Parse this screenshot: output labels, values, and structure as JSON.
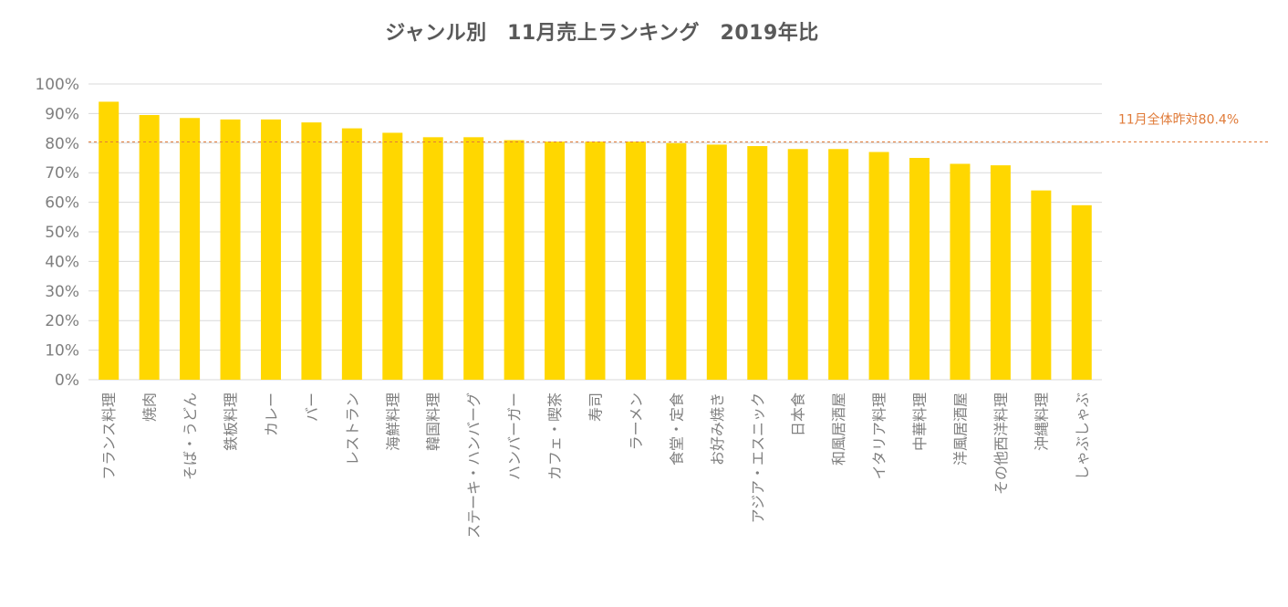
{
  "chart_data": {
    "type": "bar",
    "title": "ジャンル別　11月売上ランキング　2019年比",
    "categories": [
      "フランス料理",
      "焼肉",
      "そば・うどん",
      "鉄板料理",
      "カレー",
      "バー",
      "レストラン",
      "海鮮料理",
      "韓国料理",
      "ステーキ・ハンバーグ",
      "ハンバーガー",
      "カフェ・喫茶",
      "寿司",
      "ラーメン",
      "食堂・定食",
      "お好み焼き",
      "アジア・エスニック",
      "日本食",
      "和風居酒屋",
      "イタリア料理",
      "中華料理",
      "洋風居酒屋",
      "その他西洋料理",
      "沖縄料理",
      "しゃぶしゃぶ"
    ],
    "values": [
      94,
      89.5,
      88.5,
      88,
      88,
      87,
      85,
      83.5,
      82,
      82,
      81,
      80.5,
      80.5,
      80.5,
      80,
      79.5,
      79,
      78,
      78,
      77,
      75,
      73,
      72.5,
      64,
      59
    ],
    "ylim": [
      0,
      100
    ],
    "yticks": [
      0,
      10,
      20,
      30,
      40,
      50,
      60,
      70,
      80,
      90,
      100
    ],
    "ytick_labels": [
      "0%",
      "10%",
      "20%",
      "30%",
      "40%",
      "50%",
      "60%",
      "70%",
      "80%",
      "90%",
      "100%"
    ],
    "grid": true,
    "xlabel": "",
    "ylabel": "",
    "bar_color": "#FFD700",
    "grid_color": "#D9D9D9",
    "reference_line": {
      "value": 80.4,
      "label": "11月全体昨対80.4%",
      "color": "#E07B39"
    }
  }
}
